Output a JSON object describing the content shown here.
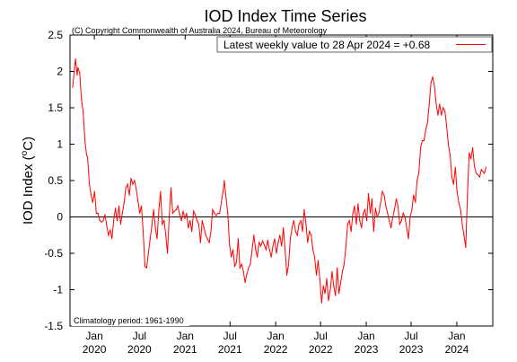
{
  "chart_data": {
    "type": "line",
    "title": "IOD Index Time Series",
    "copyright": "(C) Copyright Commonwealth of Australia 2024, Bureau of Meteorology",
    "ylabel_main": "IOD Index (",
    "ylabel_unit": "C)",
    "ylabel_sup": "o",
    "legend": "Latest weekly value to 28 Apr 2024 = +0.68",
    "footnote": "Climatology period: 1961-1990",
    "ylim": [
      -1.5,
      2.5
    ],
    "xlim": [
      "2019-09-25",
      "2024-05-25"
    ],
    "grid": false,
    "legend_position": "top-right",
    "line_color": "#ff0000",
    "yticks": [
      {
        "v": 2.5,
        "label": "2.5"
      },
      {
        "v": 2,
        "label": "2"
      },
      {
        "v": 1.5,
        "label": "1.5"
      },
      {
        "v": 1,
        "label": "1"
      },
      {
        "v": 0.5,
        "label": "0.5"
      },
      {
        "v": 0,
        "label": "0"
      },
      {
        "v": -0.5,
        "label": "-0.5"
      },
      {
        "v": -1,
        "label": "-1"
      },
      {
        "v": -1.5,
        "label": "-1.5"
      }
    ],
    "xticks": [
      {
        "date": "2020-01-01",
        "l1": "Jan",
        "l2": "2020"
      },
      {
        "date": "2020-07-01",
        "l1": "Jul",
        "l2": "2020"
      },
      {
        "date": "2021-01-01",
        "l1": "Jan",
        "l2": "2021"
      },
      {
        "date": "2021-07-01",
        "l1": "Jul",
        "l2": "2021"
      },
      {
        "date": "2022-01-01",
        "l1": "Jan",
        "l2": "2022"
      },
      {
        "date": "2022-07-01",
        "l1": "Jul",
        "l2": "2022"
      },
      {
        "date": "2023-01-01",
        "l1": "Jan",
        "l2": "2023"
      },
      {
        "date": "2023-07-01",
        "l1": "Jul",
        "l2": "2023"
      },
      {
        "date": "2024-01-01",
        "l1": "Jan",
        "l2": "2024"
      }
    ],
    "series": [
      {
        "color": "#ff0000",
        "points": [
          [
            "2019-10-06",
            1.78
          ],
          [
            "2019-10-13",
            2.05
          ],
          [
            "2019-10-17",
            2.17
          ],
          [
            "2019-10-24",
            1.95
          ],
          [
            "2019-10-27",
            2.05
          ],
          [
            "2019-11-03",
            1.98
          ],
          [
            "2019-11-10",
            1.62
          ],
          [
            "2019-11-17",
            1.45
          ],
          [
            "2019-11-24",
            1.05
          ],
          [
            "2019-12-01",
            0.85
          ],
          [
            "2019-12-05",
            0.82
          ],
          [
            "2019-12-12",
            0.45
          ],
          [
            "2019-12-19",
            0.3
          ],
          [
            "2019-12-26",
            0.2
          ],
          [
            "2020-01-02",
            0.35
          ],
          [
            "2020-01-09",
            0.05
          ],
          [
            "2020-01-16",
            0.05
          ],
          [
            "2020-01-23",
            -0.05
          ],
          [
            "2020-01-30",
            -0.07
          ],
          [
            "2020-02-06",
            -0.05
          ],
          [
            "2020-02-13",
            0.03
          ],
          [
            "2020-02-20",
            -0.12
          ],
          [
            "2020-02-27",
            -0.25
          ],
          [
            "2020-03-05",
            -0.18
          ],
          [
            "2020-03-12",
            -0.3
          ],
          [
            "2020-03-19",
            -0.05
          ],
          [
            "2020-03-26",
            0.12
          ],
          [
            "2020-04-02",
            -0.05
          ],
          [
            "2020-04-09",
            0.15
          ],
          [
            "2020-04-16",
            -0.1
          ],
          [
            "2020-04-23",
            0.05
          ],
          [
            "2020-04-30",
            0.2
          ],
          [
            "2020-05-07",
            0.4
          ],
          [
            "2020-05-14",
            0.45
          ],
          [
            "2020-05-21",
            0.3
          ],
          [
            "2020-05-28",
            0.53
          ],
          [
            "2020-06-04",
            0.45
          ],
          [
            "2020-06-11",
            0.5
          ],
          [
            "2020-06-18",
            0.38
          ],
          [
            "2020-06-25",
            0.22
          ],
          [
            "2020-07-02",
            0.05
          ],
          [
            "2020-07-09",
            0.15
          ],
          [
            "2020-07-16",
            -0.2
          ],
          [
            "2020-07-23",
            -0.68
          ],
          [
            "2020-07-30",
            -0.7
          ],
          [
            "2020-08-06",
            -0.5
          ],
          [
            "2020-08-13",
            -0.3
          ],
          [
            "2020-08-20",
            -0.12
          ],
          [
            "2020-08-27",
            0.1
          ],
          [
            "2020-09-03",
            -0.15
          ],
          [
            "2020-09-10",
            -0.3
          ],
          [
            "2020-09-17",
            0.1
          ],
          [
            "2020-09-24",
            0.35
          ],
          [
            "2020-10-01",
            -0.1
          ],
          [
            "2020-10-08",
            -0.05
          ],
          [
            "2020-10-15",
            -0.25
          ],
          [
            "2020-10-22",
            -0.5
          ],
          [
            "2020-10-29",
            0.02
          ],
          [
            "2020-11-05",
            0.4
          ],
          [
            "2020-11-12",
            0.05
          ],
          [
            "2020-11-19",
            0.08
          ],
          [
            "2020-11-26",
            0.1
          ],
          [
            "2020-12-03",
            0.15
          ],
          [
            "2020-12-10",
            0.03
          ],
          [
            "2020-12-17",
            -0.05
          ],
          [
            "2020-12-24",
            0.08
          ],
          [
            "2020-12-31",
            -0.02
          ],
          [
            "2021-01-07",
            0.05
          ],
          [
            "2021-01-14",
            -0.15
          ],
          [
            "2021-01-21",
            -0.05
          ],
          [
            "2021-01-28",
            -0.2
          ],
          [
            "2021-02-04",
            0.08
          ],
          [
            "2021-02-11",
            0.03
          ],
          [
            "2021-02-18",
            -0.05
          ],
          [
            "2021-02-25",
            -0.1
          ],
          [
            "2021-03-04",
            -0.35
          ],
          [
            "2021-03-11",
            -0.05
          ],
          [
            "2021-03-18",
            -0.15
          ],
          [
            "2021-03-25",
            -0.25
          ],
          [
            "2021-04-01",
            -0.3
          ],
          [
            "2021-04-08",
            -0.35
          ],
          [
            "2021-04-15",
            -0.2
          ],
          [
            "2021-04-22",
            0.1
          ],
          [
            "2021-04-29",
            0.05
          ],
          [
            "2021-05-06",
            0.02
          ],
          [
            "2021-05-13",
            0.05
          ],
          [
            "2021-05-20",
            0.05
          ],
          [
            "2021-05-27",
            0.2
          ],
          [
            "2021-06-03",
            0.35
          ],
          [
            "2021-06-08",
            0.5
          ],
          [
            "2021-06-15",
            0.25
          ],
          [
            "2021-06-22",
            0.05
          ],
          [
            "2021-06-29",
            -0.38
          ],
          [
            "2021-07-06",
            -0.55
          ],
          [
            "2021-07-13",
            -0.45
          ],
          [
            "2021-07-20",
            -0.68
          ],
          [
            "2021-07-27",
            -0.62
          ],
          [
            "2021-08-03",
            -0.3
          ],
          [
            "2021-08-10",
            -0.7
          ],
          [
            "2021-08-17",
            -0.65
          ],
          [
            "2021-08-24",
            -0.75
          ],
          [
            "2021-08-31",
            -0.9
          ],
          [
            "2021-09-07",
            -0.78
          ],
          [
            "2021-09-14",
            -0.7
          ],
          [
            "2021-09-21",
            -0.65
          ],
          [
            "2021-09-28",
            -0.45
          ],
          [
            "2021-10-05",
            -0.25
          ],
          [
            "2021-10-12",
            -0.45
          ],
          [
            "2021-10-19",
            -0.55
          ],
          [
            "2021-10-26",
            -0.35
          ],
          [
            "2021-11-02",
            -0.4
          ],
          [
            "2021-11-09",
            -0.33
          ],
          [
            "2021-11-16",
            -0.38
          ],
          [
            "2021-11-23",
            -0.45
          ],
          [
            "2021-11-30",
            -0.32
          ],
          [
            "2021-12-07",
            -0.45
          ],
          [
            "2021-12-14",
            -0.55
          ],
          [
            "2021-12-21",
            -0.4
          ],
          [
            "2021-12-28",
            -0.3
          ],
          [
            "2022-01-04",
            -0.5
          ],
          [
            "2022-01-11",
            -0.35
          ],
          [
            "2022-01-18",
            -0.25
          ],
          [
            "2022-01-25",
            -0.4
          ],
          [
            "2022-02-01",
            -0.15
          ],
          [
            "2022-02-08",
            -0.45
          ],
          [
            "2022-02-15",
            -0.8
          ],
          [
            "2022-02-22",
            -0.65
          ],
          [
            "2022-03-01",
            -0.3
          ],
          [
            "2022-03-08",
            -0.15
          ],
          [
            "2022-03-15",
            -0.05
          ],
          [
            "2022-03-22",
            -0.2
          ],
          [
            "2022-03-29",
            -0.25
          ],
          [
            "2022-04-05",
            -0.1
          ],
          [
            "2022-04-12",
            -0.05
          ],
          [
            "2022-04-19",
            -0.2
          ],
          [
            "2022-04-26",
            0.1
          ],
          [
            "2022-05-03",
            -0.1
          ],
          [
            "2022-05-10",
            -0.35
          ],
          [
            "2022-05-17",
            -0.2
          ],
          [
            "2022-05-24",
            -0.25
          ],
          [
            "2022-05-31",
            -0.45
          ],
          [
            "2022-06-07",
            -0.55
          ],
          [
            "2022-06-14",
            -0.8
          ],
          [
            "2022-06-21",
            -0.6
          ],
          [
            "2022-06-28",
            -0.85
          ],
          [
            "2022-07-05",
            -1.18
          ],
          [
            "2022-07-12",
            -0.95
          ],
          [
            "2022-07-19",
            -1.05
          ],
          [
            "2022-07-26",
            -0.85
          ],
          [
            "2022-08-02",
            -1.15
          ],
          [
            "2022-08-09",
            -1.0
          ],
          [
            "2022-08-16",
            -0.75
          ],
          [
            "2022-08-23",
            -0.95
          ],
          [
            "2022-08-30",
            -1.08
          ],
          [
            "2022-09-06",
            -0.7
          ],
          [
            "2022-09-13",
            -1.05
          ],
          [
            "2022-09-20",
            -0.9
          ],
          [
            "2022-09-27",
            -0.75
          ],
          [
            "2022-10-04",
            -0.65
          ],
          [
            "2022-10-11",
            -0.4
          ],
          [
            "2022-10-18",
            -0.1
          ],
          [
            "2022-10-25",
            -0.05
          ],
          [
            "2022-11-01",
            -0.2
          ],
          [
            "2022-11-08",
            0.05
          ],
          [
            "2022-11-15",
            0.15
          ],
          [
            "2022-11-22",
            -0.1
          ],
          [
            "2022-11-29",
            0.18
          ],
          [
            "2022-12-06",
            -0.05
          ],
          [
            "2022-12-13",
            -0.15
          ],
          [
            "2022-12-20",
            0.05
          ],
          [
            "2022-12-27",
            0.1
          ],
          [
            "2023-01-03",
            -0.05
          ],
          [
            "2023-01-10",
            0.32
          ],
          [
            "2023-01-17",
            0.05
          ],
          [
            "2023-01-24",
            0.25
          ],
          [
            "2023-01-31",
            -0.2
          ],
          [
            "2023-02-07",
            0.12
          ],
          [
            "2023-02-14",
            0.0
          ],
          [
            "2023-02-21",
            0.05
          ],
          [
            "2023-02-28",
            0.2
          ],
          [
            "2023-03-07",
            0.35
          ],
          [
            "2023-03-14",
            0.3
          ],
          [
            "2023-03-21",
            0.15
          ],
          [
            "2023-03-28",
            0.05
          ],
          [
            "2023-04-04",
            -0.05
          ],
          [
            "2023-04-11",
            -0.15
          ],
          [
            "2023-04-18",
            0.0
          ],
          [
            "2023-04-25",
            0.1
          ],
          [
            "2023-05-02",
            0.25
          ],
          [
            "2023-05-09",
            0.15
          ],
          [
            "2023-05-16",
            -0.1
          ],
          [
            "2023-05-23",
            -0.05
          ],
          [
            "2023-05-30",
            0.05
          ],
          [
            "2023-06-06",
            0.0
          ],
          [
            "2023-06-13",
            -0.15
          ],
          [
            "2023-06-20",
            -0.3
          ],
          [
            "2023-06-27",
            0.0
          ],
          [
            "2023-07-04",
            0.1
          ],
          [
            "2023-07-11",
            0.3
          ],
          [
            "2023-07-18",
            0.2
          ],
          [
            "2023-07-25",
            0.5
          ],
          [
            "2023-08-01",
            0.6
          ],
          [
            "2023-08-08",
            0.95
          ],
          [
            "2023-08-15",
            1.05
          ],
          [
            "2023-08-22",
            1.05
          ],
          [
            "2023-08-29",
            1.2
          ],
          [
            "2023-09-05",
            1.3
          ],
          [
            "2023-09-12",
            1.55
          ],
          [
            "2023-09-19",
            1.85
          ],
          [
            "2023-09-26",
            1.92
          ],
          [
            "2023-10-03",
            1.8
          ],
          [
            "2023-10-10",
            1.55
          ],
          [
            "2023-10-17",
            1.4
          ],
          [
            "2023-10-24",
            1.55
          ],
          [
            "2023-10-31",
            1.4
          ],
          [
            "2023-11-07",
            1.5
          ],
          [
            "2023-11-14",
            1.45
          ],
          [
            "2023-11-21",
            1.25
          ],
          [
            "2023-11-28",
            1.0
          ],
          [
            "2023-12-05",
            0.85
          ],
          [
            "2023-12-12",
            0.55
          ],
          [
            "2023-12-19",
            0.45
          ],
          [
            "2023-12-26",
            0.68
          ],
          [
            "2024-01-02",
            0.35
          ],
          [
            "2024-01-09",
            0.2
          ],
          [
            "2024-01-16",
            0.1
          ],
          [
            "2024-01-23",
            -0.1
          ],
          [
            "2024-01-30",
            -0.25
          ],
          [
            "2024-02-06",
            -0.42
          ],
          [
            "2024-02-13",
            0.3
          ],
          [
            "2024-02-20",
            0.88
          ],
          [
            "2024-02-27",
            0.8
          ],
          [
            "2024-03-05",
            0.95
          ],
          [
            "2024-03-12",
            0.7
          ],
          [
            "2024-03-19",
            0.6
          ],
          [
            "2024-03-26",
            0.58
          ],
          [
            "2024-04-02",
            0.55
          ],
          [
            "2024-04-09",
            0.65
          ],
          [
            "2024-04-21",
            0.6
          ],
          [
            "2024-04-28",
            0.68
          ]
        ]
      }
    ]
  }
}
